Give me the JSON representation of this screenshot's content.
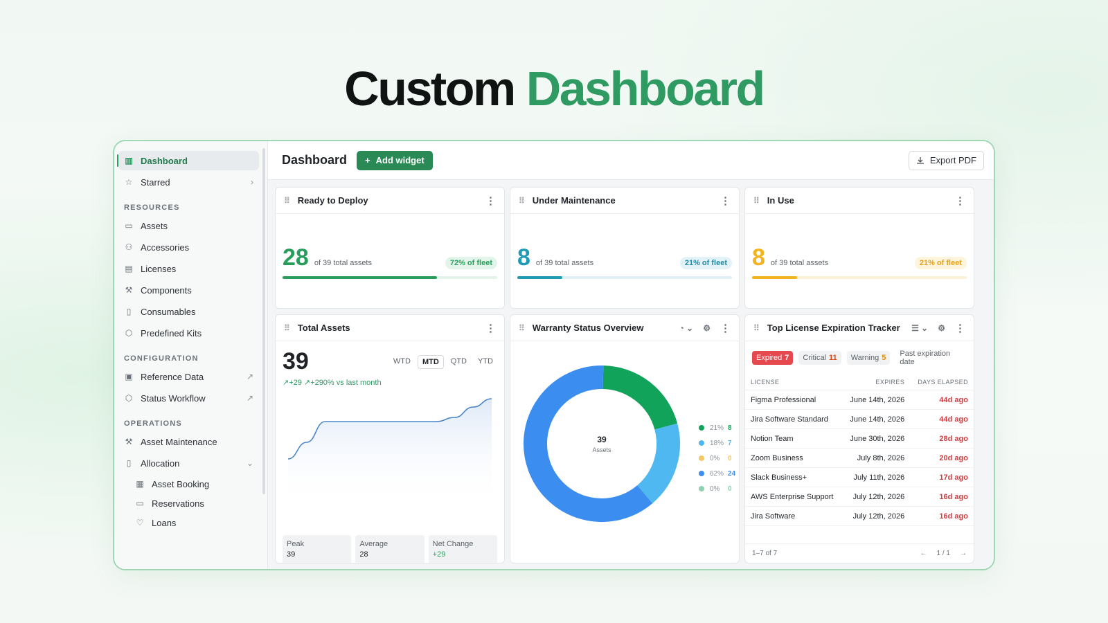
{
  "hero": {
    "word1": "Custom",
    "word2": "Dashboard"
  },
  "sidebar": {
    "top": [
      {
        "label": "Dashboard",
        "icon": "bar-chart-icon",
        "glyph": "▥"
      },
      {
        "label": "Starred",
        "icon": "star-icon",
        "glyph": "☆",
        "trail": "›"
      }
    ],
    "sections": [
      {
        "title": "RESOURCES",
        "items": [
          {
            "label": "Assets",
            "glyph": "▭"
          },
          {
            "label": "Accessories",
            "glyph": "⚇"
          },
          {
            "label": "Licenses",
            "glyph": "▤"
          },
          {
            "label": "Components",
            "glyph": "⚒"
          },
          {
            "label": "Consumables",
            "glyph": "▯"
          },
          {
            "label": "Predefined Kits",
            "glyph": "⬡"
          }
        ]
      },
      {
        "title": "CONFIGURATION",
        "items": [
          {
            "label": "Reference Data",
            "glyph": "▣",
            "trail": "↗"
          },
          {
            "label": "Status Workflow",
            "glyph": "⬡",
            "trail": "↗"
          }
        ]
      },
      {
        "title": "OPERATIONS",
        "items": [
          {
            "label": "Asset Maintenance",
            "glyph": "⚒"
          },
          {
            "label": "Allocation",
            "glyph": "▯",
            "trail": "⌄"
          }
        ]
      }
    ],
    "allocation_sub": [
      {
        "label": "Asset Booking",
        "glyph": "▦"
      },
      {
        "label": "Reservations",
        "glyph": "▭"
      },
      {
        "label": "Loans",
        "glyph": "♡"
      }
    ]
  },
  "topbar": {
    "title": "Dashboard",
    "add_label": "Add widget",
    "export_label": "Export PDF"
  },
  "cards": {
    "ready": {
      "title": "Ready to Deploy",
      "value": "28",
      "sub": "of 39 total assets",
      "pill": "72% of fleet",
      "fraction": 0.72,
      "color": "#2a9d5c",
      "track": "#e3f3e9",
      "pill_bg": "#e3f5ea",
      "pill_fg": "#2a9d5c"
    },
    "maint": {
      "title": "Under Maintenance",
      "value": "8",
      "sub": "of 39 total assets",
      "pill": "21% of fleet",
      "fraction": 0.21,
      "color": "#1f9bb5",
      "track": "#e1eff4",
      "pill_bg": "#e3f2f6",
      "pill_fg": "#1f8aa3"
    },
    "inuse": {
      "title": "In Use",
      "value": "8",
      "sub": "of 39 total assets",
      "pill": "21% of fleet",
      "fraction": 0.21,
      "color": "#f2b320",
      "track": "#fbf1d7",
      "pill_bg": "#fdf4dc",
      "pill_fg": "#e0a21a"
    }
  },
  "total_assets": {
    "title": "Total Assets",
    "value": "39",
    "change": "↗+29  ↗+290%  vs last month",
    "periods": [
      "WTD",
      "MTD",
      "QTD",
      "YTD"
    ],
    "active_period": "MTD",
    "footer": [
      {
        "label": "Peak",
        "value": "39",
        "green": false
      },
      {
        "label": "Average",
        "value": "28",
        "green": false
      },
      {
        "label": "Net Change",
        "value": "+29",
        "green": true
      }
    ]
  },
  "warranty": {
    "title": "Warranty Status Overview",
    "center_value": "39",
    "center_label": "Assets",
    "legend": [
      {
        "pct": "21%",
        "val": "8",
        "color": "#12a35a"
      },
      {
        "pct": "18%",
        "val": "7",
        "color": "#4fb8f0"
      },
      {
        "pct": "0%",
        "val": "0",
        "color": "#f3c86a"
      },
      {
        "pct": "62%",
        "val": "24",
        "color": "#3b8ef0"
      },
      {
        "pct": "0%",
        "val": "0",
        "color": "#8fd1ae"
      }
    ]
  },
  "licenses": {
    "title": "Top License Expiration Tracker",
    "tabs": {
      "expired": "Expired",
      "expired_n": "7",
      "critical": "Critical",
      "critical_n": "11",
      "warning": "Warning",
      "warning_n": "5",
      "past": "Past expiration date"
    },
    "headers": [
      "LICENSE",
      "EXPIRES",
      "DAYS ELAPSED"
    ],
    "rows": [
      [
        "Figma Professional",
        "June 14th, 2026",
        "44d ago"
      ],
      [
        "Jira Software Standard",
        "June 14th, 2026",
        "44d ago"
      ],
      [
        "Notion Team",
        "June 30th, 2026",
        "28d ago"
      ],
      [
        "Zoom Business",
        "July 8th, 2026",
        "20d ago"
      ],
      [
        "Slack Business+",
        "July 11th, 2026",
        "17d ago"
      ],
      [
        "AWS Enterprise Support",
        "July 12th, 2026",
        "16d ago"
      ],
      [
        "Jira Software",
        "July 12th, 2026",
        "16d ago"
      ]
    ],
    "footer_count": "1–7 of 7",
    "page": "1 / 1",
    "prev": "←",
    "next": "→"
  },
  "chart_data": [
    {
      "type": "area",
      "title": "Total Assets",
      "x": [
        0,
        1,
        2,
        3,
        4,
        5,
        6,
        7,
        8,
        9,
        10,
        11
      ],
      "values": [
        10,
        18,
        28,
        28,
        28,
        28,
        28,
        28,
        28,
        30,
        35,
        39
      ],
      "ylim": [
        0,
        40
      ]
    },
    {
      "type": "pie",
      "title": "Warranty Status Overview",
      "labels": [
        "",
        "",
        "",
        "",
        ""
      ],
      "values": [
        8,
        7,
        0,
        24,
        0
      ],
      "colors": [
        "#12a35a",
        "#4fb8f0",
        "#f3c86a",
        "#3b8ef0",
        "#8fd1ae"
      ]
    }
  ]
}
